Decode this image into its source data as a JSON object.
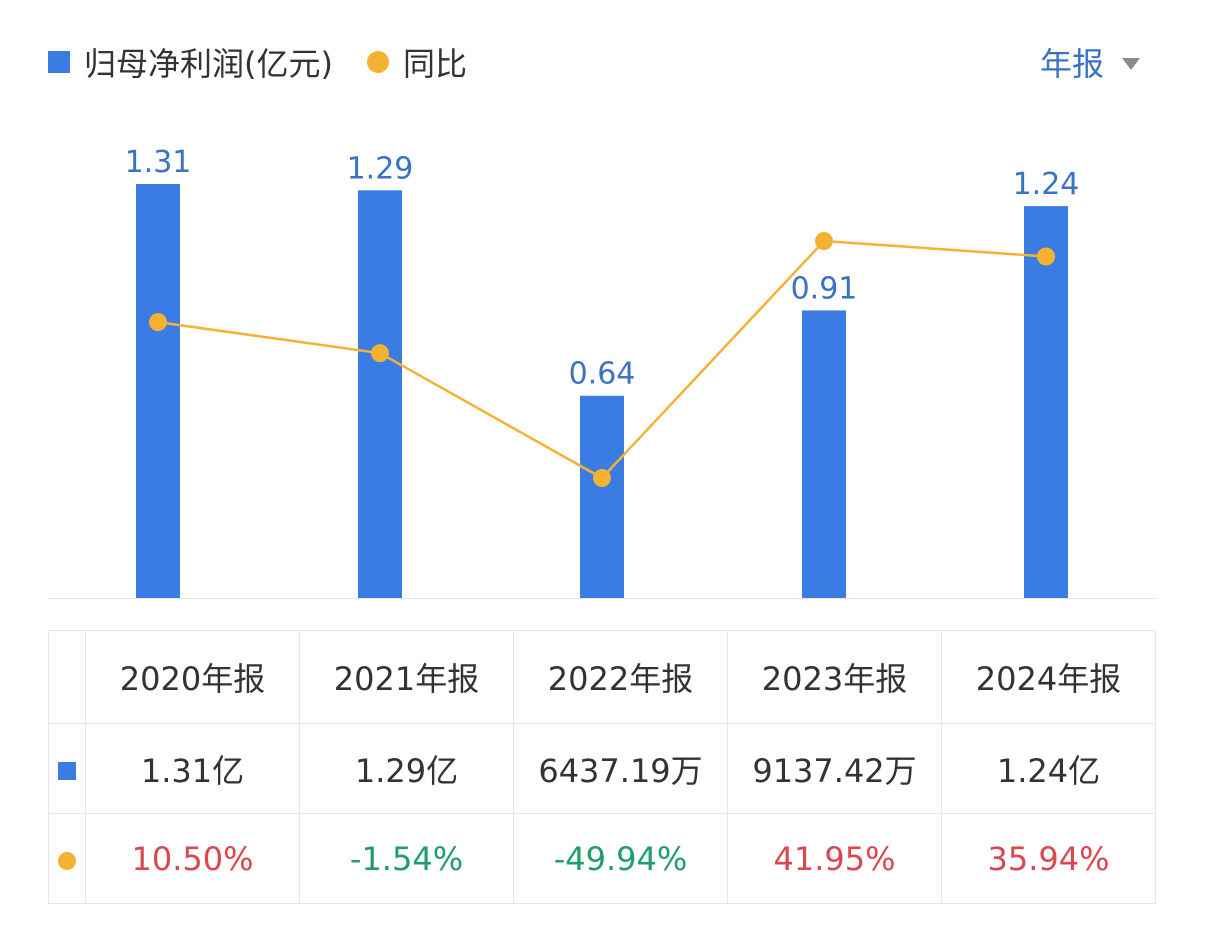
{
  "legend": {
    "bar_label": "归母净利润(亿元)",
    "line_label": "同比"
  },
  "period_selector": {
    "label": "年报",
    "icon": "dropdown-triangle-icon"
  },
  "colors": {
    "bar": "#3a7ce4",
    "line": "#f5b133",
    "accent_text": "#3a72c4",
    "positive": "#d9484f",
    "negative": "#1f9d6b"
  },
  "chart_data": {
    "type": "bar",
    "categories": [
      "2020年报",
      "2021年报",
      "2022年报",
      "2023年报",
      "2024年报"
    ],
    "series": [
      {
        "name": "归母净利润(亿元)",
        "type": "bar",
        "values": [
          1.31,
          1.29,
          0.64,
          0.91,
          1.24
        ],
        "labels": [
          "1.31",
          "1.29",
          "0.64",
          "0.91",
          "1.24"
        ]
      },
      {
        "name": "同比",
        "type": "line",
        "values": [
          10.5,
          -1.54,
          -49.94,
          41.95,
          35.94
        ],
        "unit": "%"
      }
    ],
    "ylim_bar": [
      0,
      1.31
    ],
    "ylim_line": [
      -49.94,
      41.95
    ],
    "grid": false,
    "legend_position": "top-left"
  },
  "table": {
    "headers": [
      "2020年报",
      "2021年报",
      "2022年报",
      "2023年报",
      "2024年报"
    ],
    "profit_row": [
      "1.31亿",
      "1.29亿",
      "6437.19万",
      "9137.42万",
      "1.24亿"
    ],
    "yoy_row": [
      {
        "text": "10.50%",
        "sign": "positive"
      },
      {
        "text": "-1.54%",
        "sign": "negative"
      },
      {
        "text": "-49.94%",
        "sign": "negative"
      },
      {
        "text": "41.95%",
        "sign": "positive"
      },
      {
        "text": "35.94%",
        "sign": "positive"
      }
    ]
  }
}
